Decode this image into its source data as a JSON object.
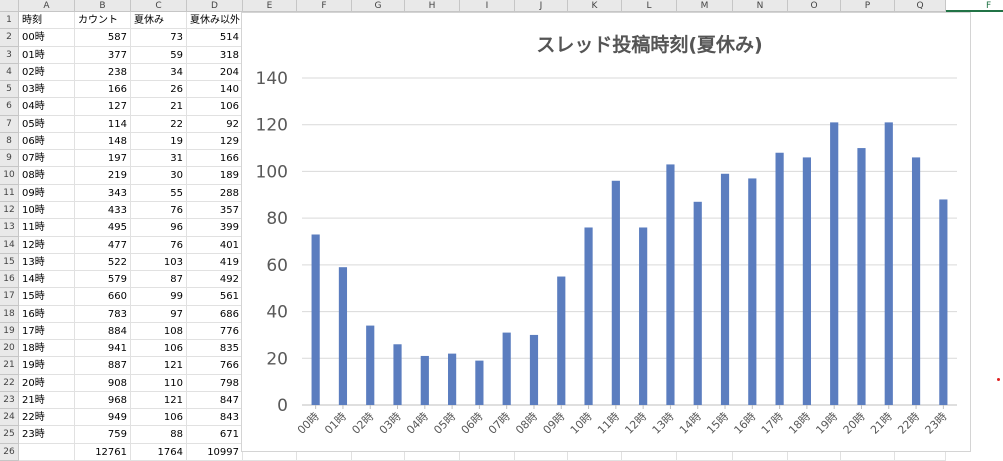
{
  "columns": [
    "A",
    "B",
    "C",
    "D",
    "E",
    "F",
    "G",
    "H",
    "I",
    "J",
    "K",
    "L",
    "M",
    "N",
    "O",
    "P",
    "Q",
    "R"
  ],
  "rows": [
    [
      "時刻",
      "カウント",
      "夏休み",
      "夏休み以外"
    ],
    [
      "00時",
      "587",
      "73",
      "514"
    ],
    [
      "01時",
      "377",
      "59",
      "318"
    ],
    [
      "02時",
      "238",
      "34",
      "204"
    ],
    [
      "03時",
      "166",
      "26",
      "140"
    ],
    [
      "04時",
      "127",
      "21",
      "106"
    ],
    [
      "05時",
      "114",
      "22",
      "92"
    ],
    [
      "06時",
      "148",
      "19",
      "129"
    ],
    [
      "07時",
      "197",
      "31",
      "166"
    ],
    [
      "08時",
      "219",
      "30",
      "189"
    ],
    [
      "09時",
      "343",
      "55",
      "288"
    ],
    [
      "10時",
      "433",
      "76",
      "357"
    ],
    [
      "11時",
      "495",
      "96",
      "399"
    ],
    [
      "12時",
      "477",
      "76",
      "401"
    ],
    [
      "13時",
      "522",
      "103",
      "419"
    ],
    [
      "14時",
      "579",
      "87",
      "492"
    ],
    [
      "15時",
      "660",
      "99",
      "561"
    ],
    [
      "16時",
      "783",
      "97",
      "686"
    ],
    [
      "17時",
      "884",
      "108",
      "776"
    ],
    [
      "18時",
      "941",
      "106",
      "835"
    ],
    [
      "19時",
      "887",
      "121",
      "766"
    ],
    [
      "20時",
      "908",
      "110",
      "798"
    ],
    [
      "21時",
      "968",
      "121",
      "847"
    ],
    [
      "22時",
      "949",
      "106",
      "843"
    ],
    [
      "23時",
      "759",
      "88",
      "671"
    ],
    [
      "",
      "12761",
      "1764",
      "10997"
    ]
  ],
  "chart_data": {
    "type": "bar",
    "title": "スレッド投稿時刻(夏休み)",
    "categories": [
      "00時",
      "01時",
      "02時",
      "03時",
      "04時",
      "05時",
      "06時",
      "07時",
      "08時",
      "09時",
      "10時",
      "11時",
      "12時",
      "13時",
      "14時",
      "15時",
      "16時",
      "17時",
      "18時",
      "19時",
      "20時",
      "21時",
      "22時",
      "23時"
    ],
    "values": [
      73,
      59,
      34,
      26,
      21,
      22,
      19,
      31,
      30,
      55,
      76,
      96,
      76,
      103,
      87,
      99,
      97,
      108,
      106,
      121,
      110,
      121,
      106,
      88
    ],
    "ylim": [
      0,
      140
    ],
    "yticks": [
      0,
      20,
      40,
      60,
      80,
      100,
      120,
      140
    ],
    "grid": true,
    "bar_color": "#5b7dbf",
    "xlabel": "",
    "ylabel": ""
  }
}
